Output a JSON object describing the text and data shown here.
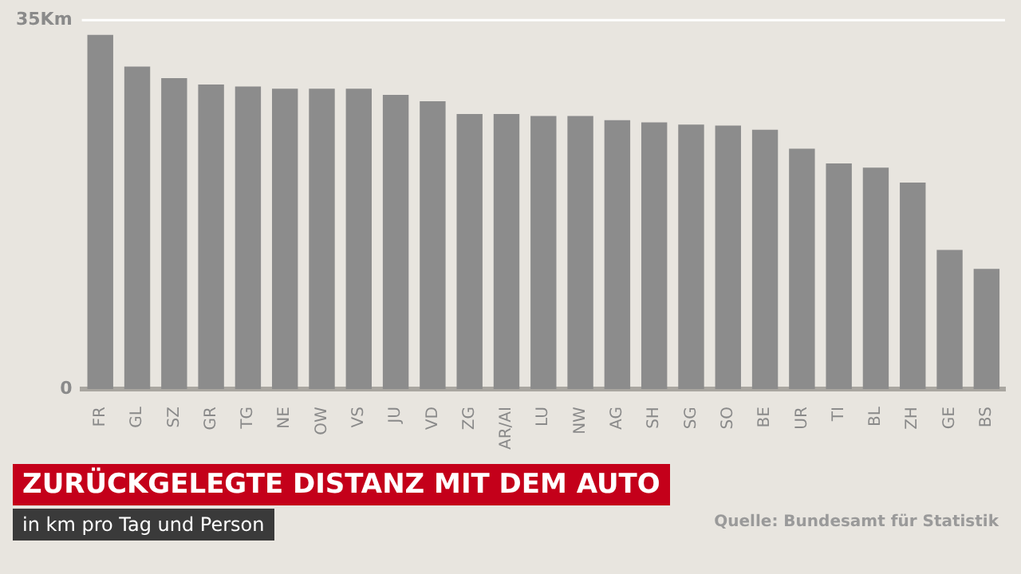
{
  "chart_data": {
    "type": "bar",
    "title": "ZURÜCKGELEGTE DISTANZ MIT DEM AUTO",
    "subtitle": "in km pro Tag und Person",
    "annotations": [
      "Quelle: Bundesamt für Statistik"
    ],
    "categories": [
      "FR",
      "GL",
      "SZ",
      "GR",
      "TG",
      "NE",
      "OW",
      "VS",
      "JU",
      "VD",
      "ZG",
      "AR/AI",
      "LU",
      "NW",
      "AG",
      "SH",
      "SG",
      "SO",
      "BE",
      "UR",
      "TI",
      "BL",
      "ZH",
      "GE",
      "BS"
    ],
    "values": [
      33.6,
      30.6,
      29.5,
      28.9,
      28.7,
      28.5,
      28.5,
      28.5,
      27.9,
      27.3,
      26.1,
      26.1,
      25.9,
      25.9,
      25.5,
      25.3,
      25.1,
      25.0,
      24.6,
      22.8,
      21.4,
      21.0,
      19.6,
      13.2,
      11.4
    ],
    "color": "#8c8c8c",
    "ylim": [
      0,
      35
    ],
    "yticks": [
      0,
      {
        "value": 35,
        "label": "35Km"
      }
    ],
    "ref_lines": [
      {
        "axis": "y",
        "value": 35,
        "color": "#ffffff"
      }
    ],
    "legend": false
  }
}
